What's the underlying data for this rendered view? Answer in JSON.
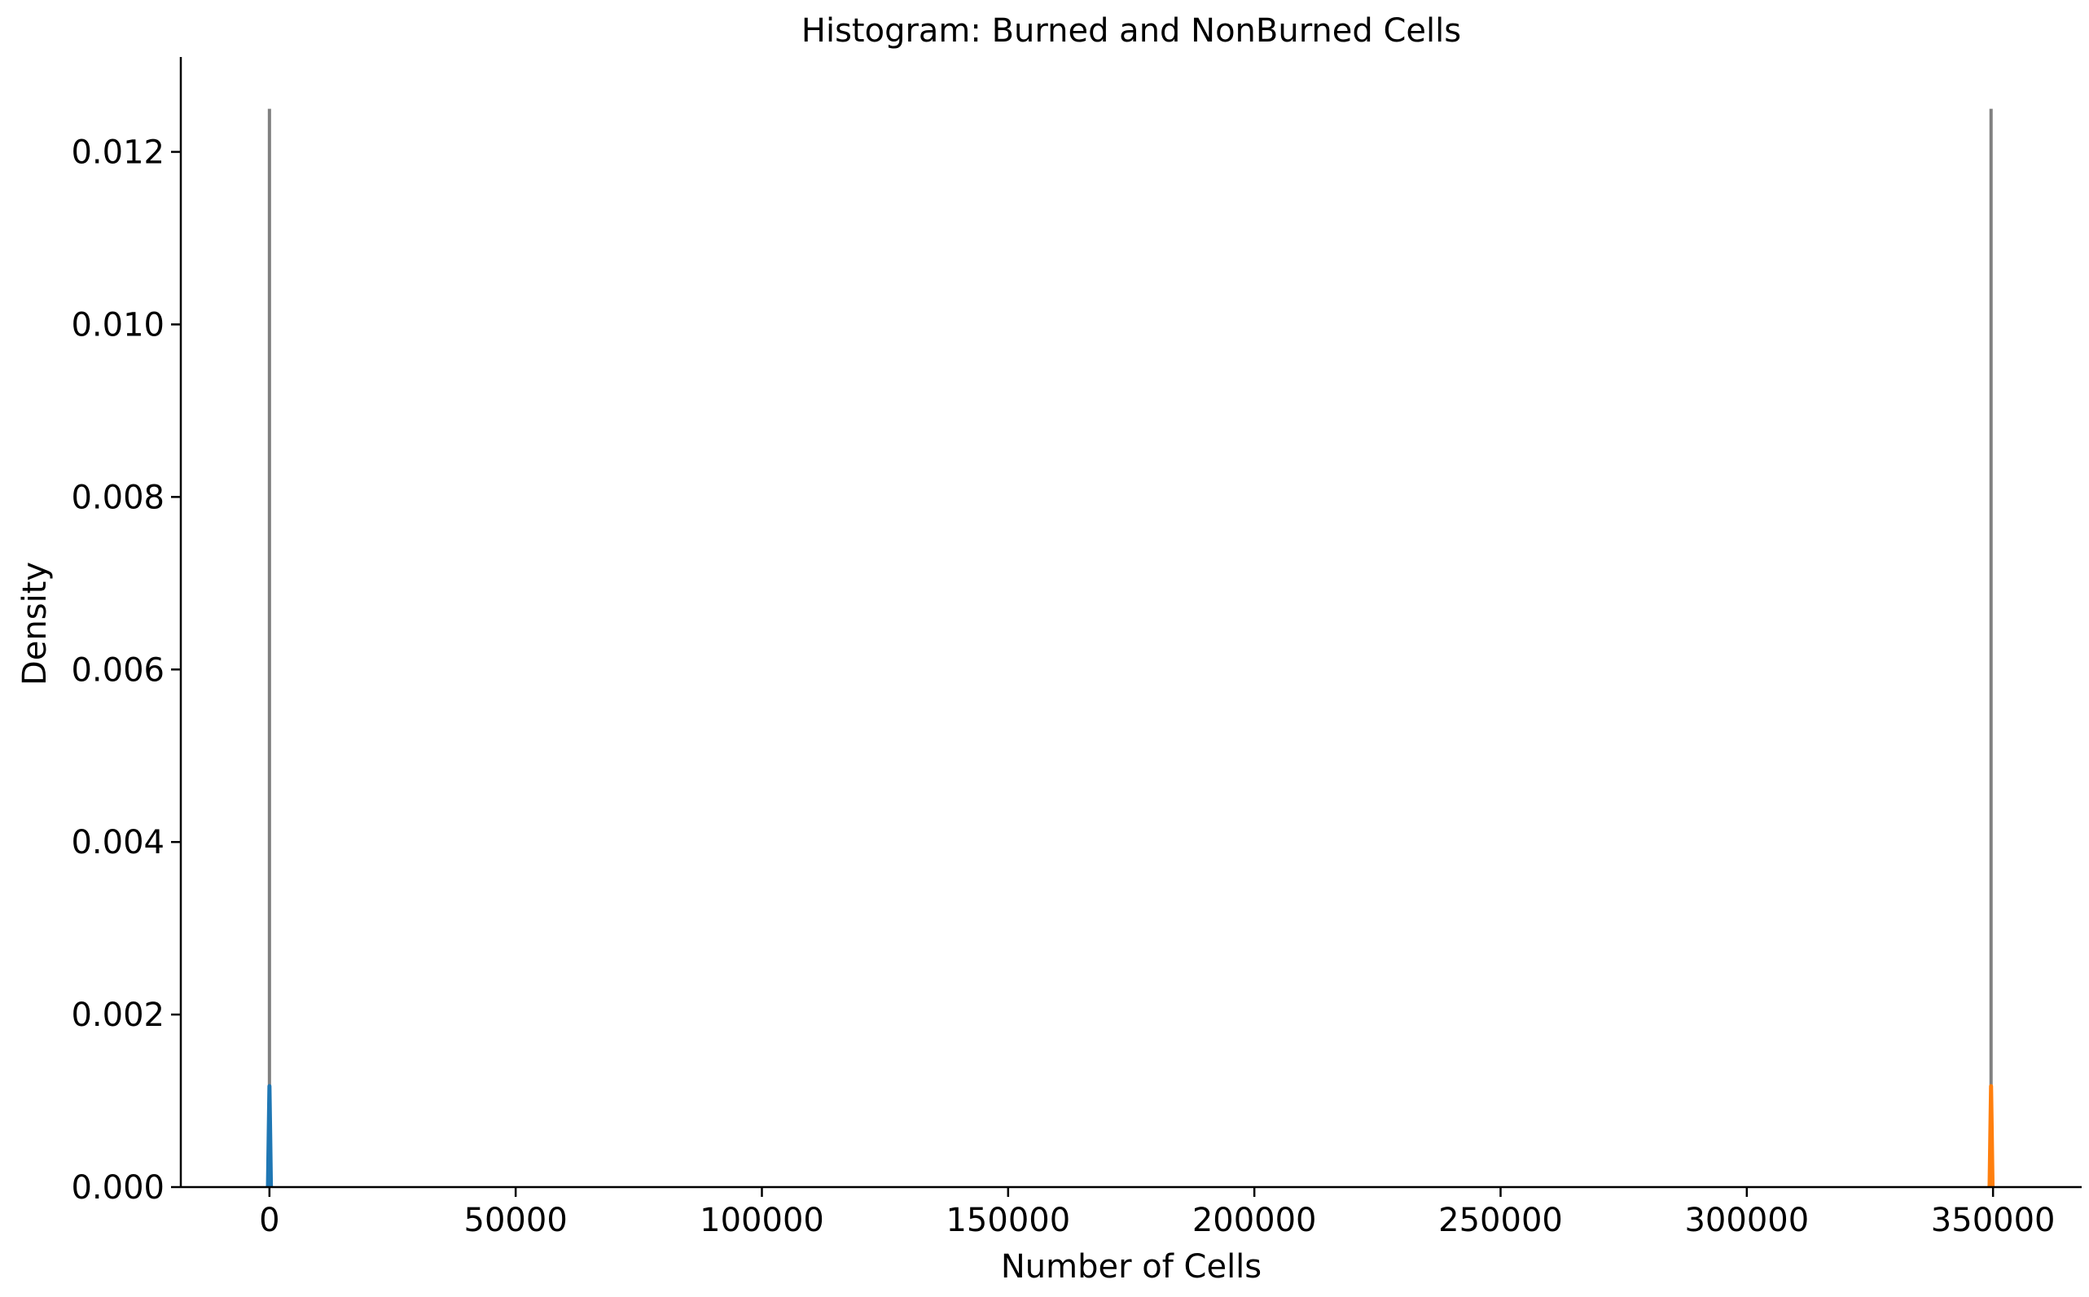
{
  "chart_data": {
    "type": "area",
    "title": "Histogram: Burned and NonBurned Cells",
    "xlabel": "Number of Cells",
    "ylabel": "Density",
    "xlim": [
      -18000,
      368000
    ],
    "ylim": [
      0,
      0.0131
    ],
    "grid": false,
    "x_ticks": [
      0,
      50000,
      100000,
      150000,
      200000,
      250000,
      300000,
      350000
    ],
    "x_tick_labels": [
      "0",
      "50000",
      "100000",
      "150000",
      "200000",
      "250000",
      "300000",
      "350000"
    ],
    "y_ticks": [
      0,
      0.002,
      0.004,
      0.006,
      0.008,
      0.01,
      0.012
    ],
    "y_tick_labels": [
      "0.000",
      "0.002",
      "0.004",
      "0.006",
      "0.008",
      "0.010",
      "0.012"
    ],
    "series": [
      {
        "color": "#1f77b4",
        "x": [
          -300,
          -150,
          0,
          150,
          300
        ],
        "y": [
          0,
          0.0006,
          0.00117,
          0.0006,
          0
        ]
      },
      {
        "color": "#ff7f0e",
        "x": [
          349300,
          349450,
          349600,
          349750,
          349900
        ],
        "y": [
          0,
          0.0006,
          0.00117,
          0.0006,
          0
        ]
      }
    ],
    "vertical_lines": [
      {
        "x": 0,
        "y_top": 0.0125,
        "color": "#808080"
      },
      {
        "x": 349600,
        "y_top": 0.0125,
        "color": "#808080"
      }
    ]
  }
}
